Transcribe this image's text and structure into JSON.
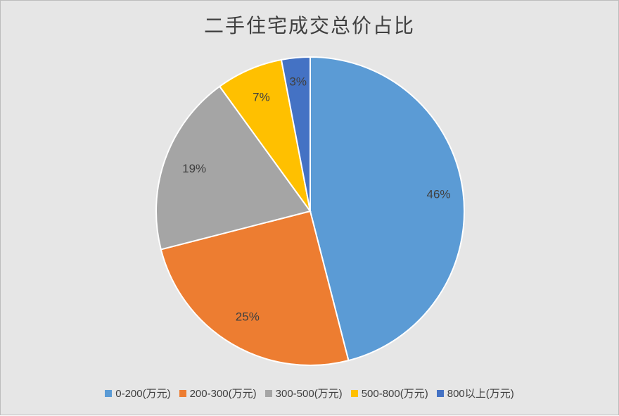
{
  "chart_data": {
    "type": "pie",
    "title": "二手住宅成交总价占比",
    "categories": [
      "0-200(万元)",
      "200-300(万元)",
      "300-500(万元)",
      "500-800(万元)",
      "800以上(万元)"
    ],
    "values": [
      46,
      25,
      19,
      7,
      3
    ],
    "labels": [
      "46%",
      "25%",
      "19%",
      "7%",
      "3%"
    ],
    "colors": [
      "#5b9bd5",
      "#ed7d31",
      "#a5a5a5",
      "#ffc000",
      "#4472c4"
    ],
    "legend_position": "bottom",
    "start_angle": "top",
    "direction": "clockwise"
  }
}
